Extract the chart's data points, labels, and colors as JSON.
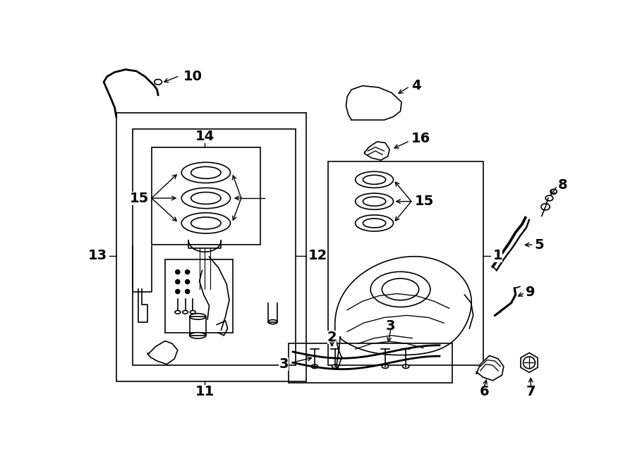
{
  "bg": "#ffffff",
  "lc": "#000000",
  "lw": 1.2,
  "fw": 9.0,
  "fh": 6.61,
  "xl": [
    0,
    900
  ],
  "yl": [
    0,
    661
  ],
  "fs": 14
}
